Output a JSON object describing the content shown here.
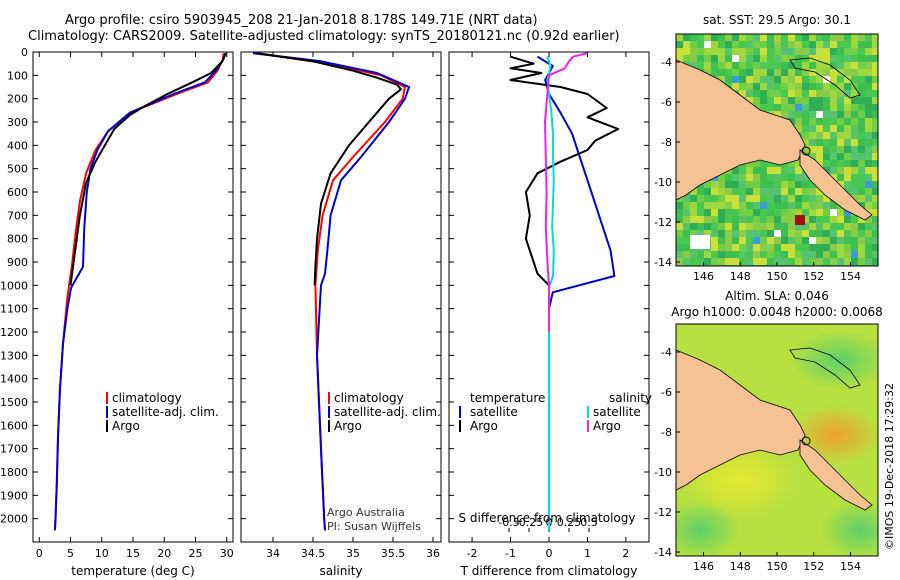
{
  "header": {
    "line1": "Argo profile: csiro 5903945_208 21-Jan-2018 8.178S 149.71E (NRT data)",
    "line2": "Climatology: CARS2009. Satellite-adjusted climatology: synTS_20180121.nc (0.92d earlier)"
  },
  "credit": {
    "line1": "Argo Australia",
    "line2": "PI: Susan Wijffels"
  },
  "watermark": "©IMOS 19-Dec-2018 17:29:32",
  "colors": {
    "climatology": "#ff0000",
    "satellite": "#0000cc",
    "argo": "#000000",
    "sat_salinity": "#00dddd",
    "argo_salinity": "#ee22ee",
    "land": "#f6c294"
  },
  "chart_data": [
    {
      "type": "line",
      "id": "temperature",
      "xlabel": "temperature (deg C)",
      "xlim": [
        -1,
        31
      ],
      "xticks": [
        0,
        5,
        10,
        15,
        20,
        25,
        30
      ],
      "xtick_labels": [
        "0",
        "5",
        "10",
        "15",
        "20",
        "25",
        "30"
      ],
      "ylim": [
        0,
        2100
      ],
      "yticks": [
        0,
        100,
        200,
        300,
        400,
        500,
        600,
        700,
        800,
        900,
        1000,
        1100,
        1200,
        1300,
        1400,
        1500,
        1600,
        1700,
        1800,
        1900,
        2000
      ],
      "ytick_labels": [
        "0",
        "100",
        "200",
        "300",
        "400",
        "500",
        "600",
        "700",
        "800",
        "900",
        "1000",
        "1100",
        "1200",
        "1300",
        "1400",
        "1500",
        "1600",
        "1700",
        "1800",
        "1900",
        "2000"
      ],
      "legend": [
        "climatology",
        "satellite-adj. clim.",
        "Argo"
      ],
      "series": [
        {
          "name": "climatology",
          "color": "#ff0000",
          "x": [
            29.5,
            29.4,
            28.5,
            27.0,
            22.0,
            14.5,
            11.0,
            9.0,
            7.5,
            6.5,
            5.8,
            5.2,
            4.5,
            3.8,
            3.3,
            3.0,
            2.8,
            2.6,
            2.5
          ],
          "y": [
            5,
            30,
            80,
            130,
            180,
            260,
            340,
            420,
            520,
            640,
            780,
            920,
            1050,
            1250,
            1450,
            1650,
            1850,
            2000,
            2050
          ]
        },
        {
          "name": "satellite-adj. clim.",
          "color": "#0000cc",
          "x": [
            29.8,
            29.5,
            28.3,
            26.5,
            21.5,
            14.5,
            11.0,
            9.3,
            8.2,
            7.6,
            7.2,
            7.0,
            5.1,
            4.5,
            3.8,
            3.3,
            3.0,
            2.8,
            2.6,
            2.5
          ],
          "y": [
            5,
            30,
            80,
            130,
            180,
            260,
            340,
            420,
            500,
            600,
            750,
            920,
            1010,
            1100,
            1250,
            1450,
            1650,
            1850,
            2000,
            2050
          ]
        },
        {
          "name": "Argo",
          "color": "#000000",
          "x": [
            29.8,
            29.3,
            27.5,
            24.5,
            20.5,
            17.0,
            14.5,
            12.0,
            10.5,
            9.0,
            7.5,
            6.5,
            5.6,
            5.0
          ],
          "y": [
            5,
            40,
            90,
            130,
            180,
            230,
            270,
            330,
            400,
            470,
            560,
            700,
            880,
            1000
          ]
        }
      ]
    },
    {
      "type": "line",
      "id": "salinity",
      "xlabel": "salinity",
      "xlim": [
        33.6,
        36.1
      ],
      "xticks": [
        34,
        34.5,
        35,
        35.5,
        36
      ],
      "xtick_labels": [
        "34",
        "34.5",
        "35",
        "35.5",
        "36"
      ],
      "ylim": [
        0,
        2100
      ],
      "legend": [
        "climatology",
        "satellite-adj. clim.",
        "Argo"
      ],
      "series": [
        {
          "name": "climatology",
          "color": "#ff0000",
          "x": [
            33.8,
            34.7,
            35.35,
            35.65,
            35.62,
            35.4,
            35.0,
            34.75,
            34.62,
            34.56,
            34.53,
            34.55,
            34.6,
            34.64,
            34.65
          ],
          "y": [
            5,
            50,
            100,
            150,
            200,
            300,
            450,
            550,
            700,
            850,
            1000,
            1300,
            1700,
            2000,
            2050
          ]
        },
        {
          "name": "satellite-adj. clim.",
          "color": "#0000cc",
          "x": [
            33.75,
            34.6,
            35.3,
            35.7,
            35.65,
            35.45,
            35.1,
            34.85,
            34.72,
            34.68,
            34.65,
            34.6,
            34.55,
            34.6,
            34.64,
            34.65
          ],
          "y": [
            5,
            40,
            90,
            150,
            200,
            300,
            450,
            550,
            700,
            850,
            950,
            1000,
            1300,
            1700,
            2000,
            2050
          ]
        },
        {
          "name": "Argo",
          "color": "#000000",
          "x": [
            33.8,
            34.5,
            35.0,
            35.3,
            35.55,
            35.6,
            35.45,
            35.25,
            34.95,
            34.72,
            34.6,
            34.55,
            34.53,
            34.52
          ],
          "y": [
            5,
            40,
            80,
            110,
            140,
            160,
            200,
            280,
            400,
            520,
            650,
            800,
            920,
            1000
          ]
        }
      ]
    },
    {
      "type": "line",
      "id": "difference",
      "xlabel": "T difference from climatology",
      "xlabel_top": "S difference from climatology",
      "xlim": [
        -2.6,
        2.6
      ],
      "xticks": [
        -2,
        -1,
        0,
        1,
        2
      ],
      "xtick_labels": [
        "-2",
        "-1",
        "0",
        "1",
        "2"
      ],
      "sticks": [
        -0.5,
        -0.25,
        0,
        0.25,
        0.5
      ],
      "stick_labels": [
        "-0.5",
        "-0.25",
        "0",
        "0.25",
        "0.5"
      ],
      "ylim": [
        0,
        2100
      ],
      "legend_left_title": "temperature",
      "legend_right_title": "salinity",
      "legend_left": [
        "satellite",
        "Argo"
      ],
      "legend_right": [
        "satellite",
        "Argo"
      ],
      "series": [
        {
          "name": "T satellite",
          "color": "#0000cc",
          "x": [
            -0.3,
            0.1,
            -0.1,
            0.0,
            0.3,
            0.6,
            0.8,
            1.0,
            1.2,
            1.4,
            1.6,
            1.7,
            0.1,
            0.0,
            0.0,
            0.0
          ],
          "y": [
            20,
            60,
            120,
            180,
            260,
            350,
            450,
            550,
            650,
            750,
            850,
            960,
            1030,
            1100,
            1500,
            2050
          ]
        },
        {
          "name": "T Argo",
          "color": "#000000",
          "x": [
            -1.0,
            -0.4,
            -1.0,
            -0.2,
            -1.0,
            0.3,
            1.0,
            1.5,
            1.0,
            1.8,
            1.2,
            1.0,
            0.3,
            -0.3,
            -0.6,
            -0.5,
            -0.6,
            -0.4,
            -0.3,
            0.0
          ],
          "y": [
            20,
            50,
            70,
            90,
            120,
            150,
            180,
            240,
            280,
            330,
            380,
            420,
            470,
            520,
            600,
            700,
            800,
            900,
            950,
            1000
          ]
        },
        {
          "name": "S satellite",
          "color": "#00dddd",
          "x": [
            -0.02,
            0.02,
            -0.02,
            0.0,
            0.03,
            0.05,
            0.05,
            0.06,
            0.05,
            0.04,
            0.06,
            0.05,
            0.0,
            0.0,
            0.0,
            0.0
          ],
          "y": [
            20,
            60,
            120,
            180,
            260,
            350,
            450,
            550,
            650,
            750,
            850,
            960,
            1010,
            1100,
            1500,
            2050
          ]
        },
        {
          "name": "S Argo",
          "color": "#ee22ee",
          "x": [
            0.48,
            0.3,
            0.25,
            0.2,
            0.0,
            -0.02,
            -0.05,
            -0.04,
            -0.03,
            -0.04,
            -0.02,
            0.0,
            0.0
          ],
          "y": [
            5,
            20,
            40,
            70,
            100,
            180,
            300,
            450,
            600,
            750,
            900,
            1000,
            1200
          ]
        }
      ]
    },
    {
      "type": "heatmap",
      "id": "sst_map",
      "title": "sat. SST: 29.5 Argo: 30.1",
      "xlim": [
        144.5,
        155.5
      ],
      "ylim": [
        -14.2,
        -2.6
      ],
      "xticks": [
        146,
        148,
        150,
        152,
        154
      ],
      "xtick_labels": [
        "146",
        "148",
        "150",
        "152",
        "154"
      ],
      "yticks": [
        -4,
        -6,
        -8,
        -10,
        -12,
        -14
      ],
      "ytick_labels": [
        "-4",
        "-6",
        "-8",
        "-10",
        "-12",
        "-14"
      ],
      "profile_marker": [
        149.71,
        -8.178
      ]
    },
    {
      "type": "heatmap",
      "id": "sla_map",
      "title": "Altim. SLA: 0.046",
      "subtitle": "Argo h1000: 0.0048 h2000: 0.0068",
      "xlim": [
        144.5,
        155.5
      ],
      "ylim": [
        -14.2,
        -2.6
      ],
      "xticks": [
        146,
        148,
        150,
        152,
        154
      ],
      "xtick_labels": [
        "146",
        "148",
        "150",
        "152",
        "154"
      ],
      "yticks": [
        -4,
        -6,
        -8,
        -10,
        -12,
        -14
      ],
      "ytick_labels": [
        "-4",
        "-6",
        "-8",
        "-10",
        "-12",
        "-14"
      ],
      "profile_marker": [
        149.71,
        -8.178
      ]
    }
  ]
}
